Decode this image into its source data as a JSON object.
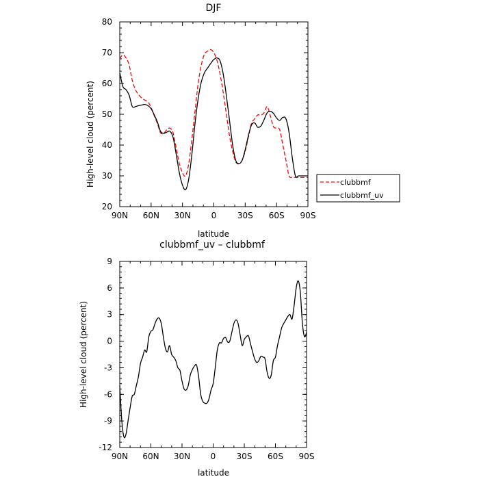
{
  "chart_data": [
    {
      "type": "line",
      "title": "DJF",
      "xlabel": "latitude",
      "ylabel": "High-level cloud (percent)",
      "x_ticks": [
        "90N",
        "60N",
        "30N",
        "0",
        "30S",
        "60S",
        "90S"
      ],
      "x_tick_values": [
        90,
        60,
        30,
        0,
        -30,
        -60,
        -90
      ],
      "xlim": [
        90,
        -90
      ],
      "ylim": [
        20,
        80
      ],
      "y_ticks": [
        20,
        30,
        40,
        50,
        60,
        70,
        80
      ],
      "legend_position": "right",
      "series": [
        {
          "name": "clubbmf",
          "color": "#ff0000",
          "dashed": true,
          "x": [
            90,
            87,
            84,
            81,
            78,
            75,
            72,
            69,
            66,
            63,
            60,
            57,
            54,
            51,
            48,
            45,
            42,
            39,
            36,
            33,
            30,
            27,
            24,
            21,
            18,
            15,
            12,
            9,
            6,
            3,
            0,
            -3,
            -6,
            -9,
            -12,
            -15,
            -18,
            -21,
            -24,
            -27,
            -30,
            -33,
            -36,
            -39,
            -42,
            -45,
            -48,
            -51,
            -54,
            -57,
            -60,
            -63,
            -66,
            -69,
            -72,
            -75,
            -78,
            -81,
            -84,
            -87,
            -90
          ],
          "y": [
            68,
            69.3,
            68.3,
            66,
            61,
            58,
            56.4,
            55.3,
            54.6,
            54,
            52.2,
            49.5,
            47,
            44,
            43.8,
            45,
            45.5,
            44,
            39,
            34,
            31,
            30,
            34,
            42,
            51,
            60,
            66,
            69.5,
            70.5,
            71,
            70,
            67.5,
            63,
            57,
            50,
            43,
            38,
            34.5,
            33.9,
            35,
            38,
            42.5,
            47,
            48.5,
            49.8,
            49.7,
            50.5,
            52.5,
            49.5,
            46,
            45.5,
            45,
            40,
            35,
            30,
            29.5,
            29.5,
            29.5,
            29.5,
            29.5,
            29.5
          ]
        },
        {
          "name": "clubbmf_uv",
          "color": "#000000",
          "dashed": false,
          "x": [
            90,
            87,
            84,
            81,
            78,
            75,
            72,
            69,
            66,
            63,
            60,
            57,
            54,
            51,
            48,
            45,
            42,
            39,
            36,
            33,
            30,
            27,
            24,
            21,
            18,
            15,
            12,
            9,
            6,
            3,
            0,
            -3,
            -6,
            -9,
            -12,
            -15,
            -18,
            -21,
            -24,
            -27,
            -30,
            -33,
            -36,
            -39,
            -42,
            -45,
            -48,
            -51,
            -54,
            -57,
            -60,
            -63,
            -66,
            -69,
            -72,
            -75,
            -78,
            -81,
            -84,
            -87,
            -90
          ],
          "y": [
            63.5,
            59,
            58,
            56.2,
            52.5,
            52.5,
            52.8,
            53,
            53.2,
            52.8,
            51.8,
            49.8,
            47.5,
            44.5,
            43.8,
            44.2,
            44.5,
            42.5,
            37,
            31,
            27,
            25.5,
            29,
            37,
            47,
            55,
            60.5,
            63.5,
            65,
            66.5,
            67.8,
            68.3,
            67.3,
            63,
            56,
            48,
            40,
            35,
            34,
            35,
            38.5,
            43,
            46.5,
            47.2,
            45.8,
            46.2,
            48.2,
            50.5,
            51,
            50.3,
            48.8,
            48,
            49,
            48.5,
            44,
            36,
            30,
            30,
            30,
            30,
            30
          ]
        }
      ]
    },
    {
      "type": "line",
      "title": "clubbmf_uv – clubbmf",
      "xlabel": "latitude",
      "ylabel": "High-level cloud (percent)",
      "x_ticks": [
        "90N",
        "60N",
        "30N",
        "0",
        "30S",
        "60S",
        "90S"
      ],
      "x_tick_values": [
        90,
        60,
        30,
        0,
        -30,
        -60,
        -90
      ],
      "xlim": [
        90,
        -90
      ],
      "ylim": [
        -12,
        9
      ],
      "y_ticks": [
        -12,
        -9,
        -6,
        -3,
        0,
        3,
        6,
        9
      ],
      "series": [
        {
          "color": "#000000",
          "dashed": false,
          "x": [
            90,
            88,
            86,
            84,
            82,
            80,
            78,
            76,
            74,
            72,
            70,
            68,
            66,
            64,
            62,
            60,
            58,
            56,
            54,
            52,
            50,
            48,
            46,
            44,
            42,
            40,
            38,
            36,
            34,
            32,
            30,
            28,
            26,
            24,
            22,
            20,
            18,
            16,
            14,
            12,
            10,
            8,
            6,
            4,
            2,
            0,
            -2,
            -4,
            -6,
            -8,
            -10,
            -12,
            -14,
            -16,
            -18,
            -20,
            -22,
            -24,
            -26,
            -28,
            -30,
            -32,
            -34,
            -36,
            -38,
            -40,
            -42,
            -44,
            -46,
            -48,
            -50,
            -52,
            -54,
            -56,
            -58,
            -60,
            -62,
            -64,
            -66,
            -68,
            -70,
            -72,
            -74,
            -76,
            -78,
            -80,
            -82,
            -84,
            -86,
            -88,
            -90
          ],
          "y": [
            -5,
            -9,
            -10.8,
            -10.5,
            -9,
            -7.5,
            -6.2,
            -6,
            -5,
            -4,
            -2.5,
            -1.8,
            -1,
            -1.2,
            0.5,
            1.1,
            1.3,
            2,
            2.5,
            2.6,
            2,
            0.5,
            -0.8,
            -1.2,
            -0.5,
            -1.5,
            -1.8,
            -2.2,
            -3,
            -3.3,
            -4.5,
            -5.4,
            -5.5,
            -5,
            -3.8,
            -3.2,
            -2.8,
            -2.7,
            -4,
            -6,
            -6.8,
            -7,
            -7,
            -6.5,
            -5.5,
            -4.8,
            -3,
            -1,
            -0.2,
            -0.2,
            0.3,
            0.4,
            -0.1,
            0,
            1,
            2,
            2.4,
            2,
            0.7,
            -0.5,
            0.2,
            0.5,
            0.6,
            -0.3,
            -1.2,
            -2,
            -2.4,
            -2.2,
            -1.7,
            -1.8,
            -2,
            -3.5,
            -4.2,
            -3.8,
            -2.2,
            -1.8,
            -0.5,
            0.5,
            1.5,
            2,
            2.4,
            2.8,
            3,
            2.5,
            4,
            6,
            6.8,
            5.5,
            2,
            0.5,
            1
          ]
        }
      ]
    }
  ]
}
